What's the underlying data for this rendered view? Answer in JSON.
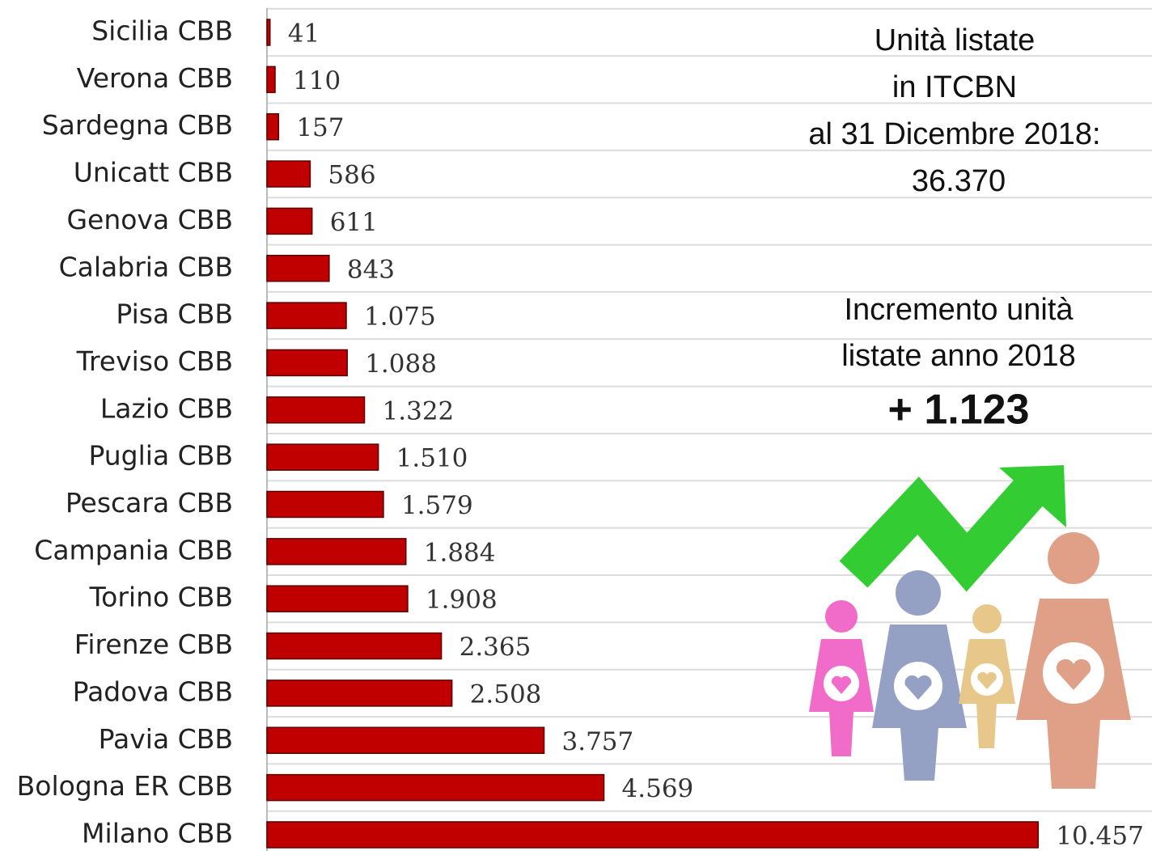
{
  "chart_data": {
    "type": "bar",
    "orientation": "horizontal",
    "categories": [
      "Sicilia CBB",
      "Verona CBB",
      "Sardegna CBB",
      "Unicatt CBB",
      "Genova CBB",
      "Calabria CBB",
      "Pisa CBB",
      "Treviso CBB",
      "Lazio CBB",
      "Puglia CBB",
      "Pescara CBB",
      "Campania CBB",
      "Torino CBB",
      "Firenze CBB",
      "Padova CBB",
      "Pavia CBB",
      "Bologna ER CBB",
      "Milano CBB"
    ],
    "values": [
      41,
      110,
      157,
      586,
      611,
      843,
      1075,
      1088,
      1322,
      1510,
      1579,
      1884,
      1908,
      2365,
      2508,
      3757,
      4569,
      10457
    ],
    "value_labels": [
      "41",
      "110",
      "157",
      "586",
      "611",
      "843",
      "1.075",
      "1.088",
      "1.322",
      "1.510",
      "1.579",
      "1.884",
      "1.908",
      "2.365",
      "2.508",
      "3.757",
      "4.569",
      "10.457"
    ],
    "color": "#c00000",
    "xlim": [
      0,
      12000
    ],
    "annotations": [
      "Unità listate",
      "in ITCBN",
      "al 31 Dicembre 2018:",
      "36.370",
      "Incremento unità",
      "listate anno 2018",
      "+ 1.123"
    ]
  }
}
